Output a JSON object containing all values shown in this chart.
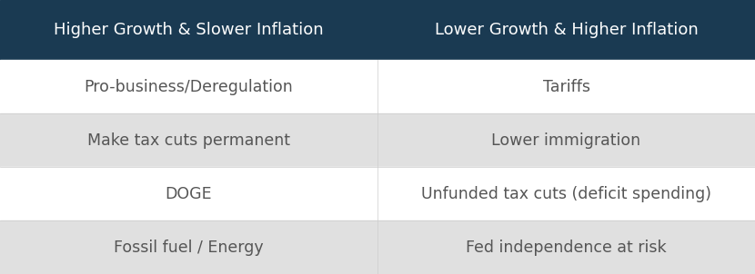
{
  "header_bg_color": "#1a3a52",
  "header_text_color": "#ffffff",
  "header_left": "Higher Growth & Slower Inflation",
  "header_right": "Lower Growth & Higher Inflation",
  "rows": [
    {
      "left": "Pro-business/Deregulation",
      "right": "Tariffs",
      "bg_color": "#ffffff"
    },
    {
      "left": "Make tax cuts permanent",
      "right": "Lower immigration",
      "bg_color": "#e0e0e0"
    },
    {
      "left": "DOGE",
      "right": "Unfunded tax cuts (deficit spending)",
      "bg_color": "#ffffff"
    },
    {
      "left": "Fossil fuel / Energy",
      "right": "Fed independence at risk",
      "bg_color": "#e0e0e0"
    }
  ],
  "row_text_color": "#555555",
  "fig_width": 8.3,
  "fig_height": 3.02,
  "header_fontsize": 13,
  "row_fontsize": 12.5,
  "divider_color": "#cccccc"
}
